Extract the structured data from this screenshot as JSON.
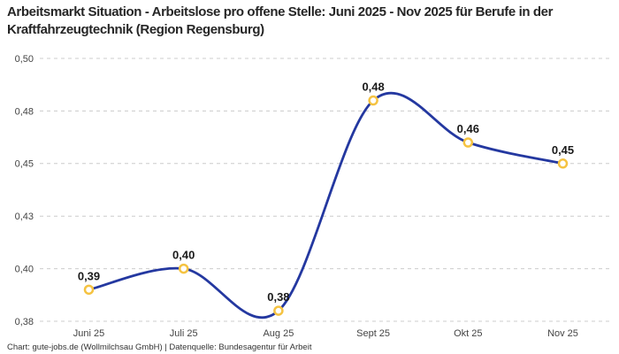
{
  "title": "Arbeitsmarkt Situation - Arbeitslose pro offene Stelle: Juni 2025 - Nov 2025 für Berufe in der Kraftfahrzeugtechnik (Region Regensburg)",
  "footer": "Chart: gute-jobs.de (Wollmilchsau GmbH) | Datenquelle: Bundesagentur für Arbeit",
  "chart_data": {
    "type": "line",
    "title": "Arbeitsmarkt Situation - Arbeitslose pro offene Stelle: Juni 2025 - Nov 2025 für Berufe in der Kraftfahrzeugtechnik (Region Regensburg)",
    "categories": [
      "Juni 25",
      "Juli 25",
      "Aug 25",
      "Sept 25",
      "Okt 25",
      "Nov 25"
    ],
    "values": [
      0.39,
      0.4,
      0.38,
      0.48,
      0.46,
      0.45
    ],
    "point_labels": [
      "0,39",
      "0,40",
      "0,38",
      "0,48",
      "0,46",
      "0,45"
    ],
    "xlabel": "",
    "ylabel": "",
    "ylim": [
      0.375,
      0.5
    ],
    "y_ticks": [
      {
        "value": 0.5,
        "label": "0,50"
      },
      {
        "value": 0.475,
        "label": "0,48"
      },
      {
        "value": 0.45,
        "label": "0,45"
      },
      {
        "value": 0.425,
        "label": "0,43"
      },
      {
        "value": 0.4,
        "label": "0,40"
      },
      {
        "value": 0.375,
        "label": "0,38"
      }
    ],
    "grid": "horizontal-dashed",
    "legend": "none",
    "colors": {
      "line": "#2438a0",
      "marker_stroke": "#f5c342",
      "marker_fill": "#ffffff",
      "grid_line": "#cccccc",
      "tick_text": "#444444",
      "point_label_text": "#1a1a1a",
      "title_text": "#262626",
      "footer_text": "#333333",
      "background": "#ffffff"
    }
  }
}
